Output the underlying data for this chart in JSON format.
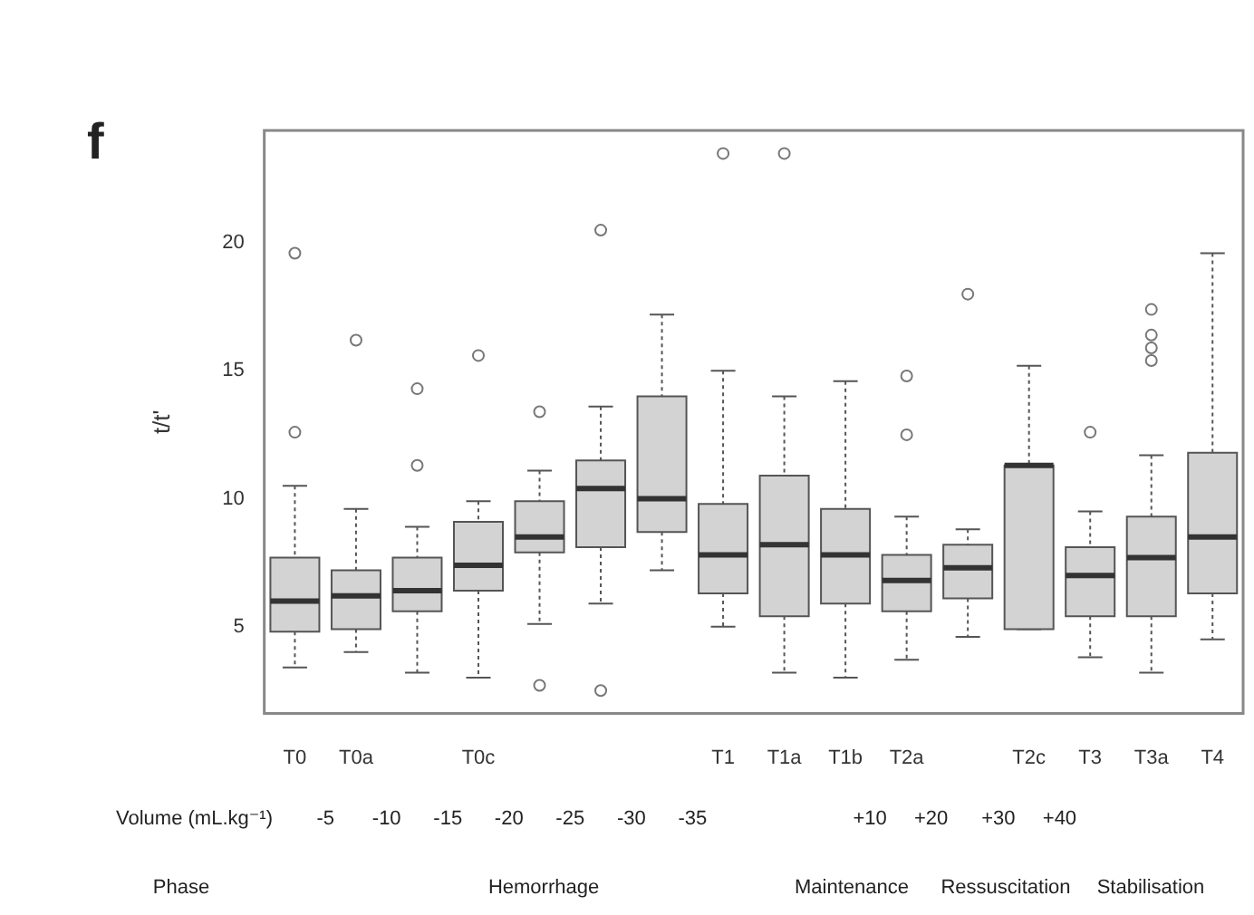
{
  "chart_data": {
    "type": "box",
    "title": "f",
    "ylabel": "t/t'",
    "color": "#d3d3d3",
    "grid": false,
    "categories": [
      "T0",
      "T0a",
      null,
      "T0c",
      null,
      null,
      null,
      "T1",
      "T1a",
      "T1b",
      "T2a",
      null,
      "T2c",
      "T3",
      "T3a",
      "T4"
    ],
    "ylim": [
      1.6,
      24.4
    ],
    "yticks": [
      5,
      10,
      15,
      20
    ],
    "boxes": [
      {
        "low": 3.4,
        "q1": 4.8,
        "median": 6.0,
        "q3": 7.7,
        "high": 10.5,
        "outliers": [
          19.6,
          12.6
        ]
      },
      {
        "low": 4.0,
        "q1": 4.9,
        "median": 6.2,
        "q3": 7.2,
        "high": 9.6,
        "outliers": [
          16.2
        ]
      },
      {
        "low": 3.2,
        "q1": 5.6,
        "median": 6.4,
        "q3": 7.7,
        "high": 8.9,
        "outliers": [
          14.3,
          11.3
        ]
      },
      {
        "low": 3.0,
        "q1": 6.4,
        "median": 7.4,
        "q3": 9.1,
        "high": 9.9,
        "outliers": [
          15.6
        ]
      },
      {
        "low": 5.1,
        "q1": 7.9,
        "median": 8.5,
        "q3": 9.9,
        "high": 11.1,
        "outliers": [
          13.4,
          2.7
        ]
      },
      {
        "low": 5.9,
        "q1": 8.1,
        "median": 10.4,
        "q3": 11.5,
        "high": 13.6,
        "outliers": [
          20.5,
          2.5
        ]
      },
      {
        "low": 7.2,
        "q1": 8.7,
        "median": 10.0,
        "q3": 14.0,
        "high": 17.2
      },
      {
        "low": 5.0,
        "q1": 6.3,
        "median": 7.8,
        "q3": 9.8,
        "high": 15.0,
        "outliers": [
          23.5
        ]
      },
      {
        "low": 3.2,
        "q1": 5.4,
        "median": 8.2,
        "q3": 10.9,
        "high": 14.0,
        "outliers": [
          23.5
        ]
      },
      {
        "low": 3.0,
        "q1": 5.9,
        "median": 7.8,
        "q3": 9.6,
        "high": 14.6
      },
      {
        "low": 3.7,
        "q1": 5.6,
        "median": 6.8,
        "q3": 7.8,
        "high": 9.3,
        "outliers": [
          14.8,
          12.5
        ]
      },
      {
        "low": 4.6,
        "q1": 6.1,
        "median": 7.3,
        "q3": 8.2,
        "high": 8.8,
        "outliers": [
          18.0
        ]
      },
      {
        "low": 4.9,
        "q1": 4.9,
        "median": 11.3,
        "q3": 11.3,
        "high": 15.2
      },
      {
        "low": 3.8,
        "q1": 5.4,
        "median": 7.0,
        "q3": 8.1,
        "high": 9.5,
        "outliers": [
          12.6
        ]
      },
      {
        "low": 3.2,
        "q1": 5.4,
        "median": 7.7,
        "q3": 9.3,
        "high": 11.7,
        "outliers": [
          17.4,
          16.4,
          15.9,
          15.4
        ]
      },
      {
        "low": 4.5,
        "q1": 6.3,
        "median": 8.5,
        "q3": 11.8,
        "high": 19.6
      }
    ],
    "annotations": [
      "Volume (mL.kg⁻¹)",
      "-5",
      "-10",
      "-15",
      "-20",
      "-25",
      "-30",
      "-35",
      "+10",
      "+20",
      "+30",
      "+40",
      "Phase",
      "Hemorrhage",
      "Maintenance",
      "Ressuscitation",
      "Stabilisation"
    ]
  }
}
